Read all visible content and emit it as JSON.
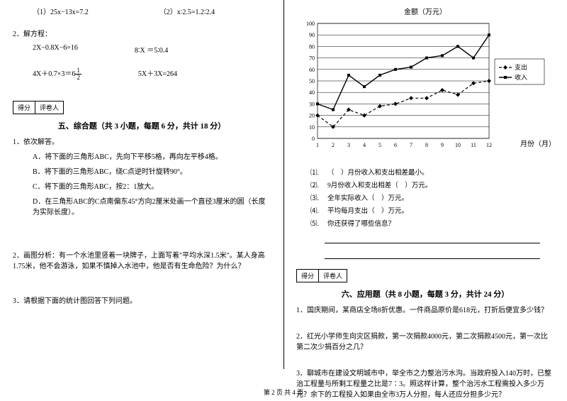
{
  "left": {
    "eq1a": "（1）25x−13x=7.2",
    "eq1b": "（2）x∶2.5=1.2∶2.4",
    "q2_label": "2．解方程：",
    "eq2a": "2X−0.8X−6=16",
    "eq2b": "8∶X ＝5∶0.4",
    "eq3a_pre": "4X＋0.7×3＝6",
    "eq3a_frac_n": "1",
    "eq3a_frac_d": "2",
    "eq3b": "5X＋3X=264",
    "score_a": "得分",
    "score_b": "评卷人",
    "section5": "五、综合题（共 3 小题，每题 6 分，共计 18 分）",
    "q1": "1．依次解答。",
    "q1a": "A．将下面的三角形ABC，先向下平移5格，再向左平移4格。",
    "q1b": "B．将下面的三角形ABC，绕C点逆时针旋转90°。",
    "q1c": "C．将下面的三角形ABC，按2：1放大。",
    "q1d": "D．在三角形ABC的C点南偏东45°方向2厘米处画一个直径3厘米的圆（长度为实际长度）。",
    "q2": "2．画图分析：有一个水池里竖着一块牌子，上面写着\"平均水深1.5米\"。某人身高1.75米，他不会游泳，如果不慎掉入水池中，他是否有生命危险？为什么？",
    "q3": "3．请根据下面的统计图回答下列问题。"
  },
  "right": {
    "chart_title": "金额（万元）",
    "xlabel": "月份（月）",
    "legend_a": "支出",
    "legend_b": "收入",
    "chart": {
      "ylim": [
        0,
        100
      ],
      "ytick_step": 10,
      "yticks": [
        "0",
        "10",
        "20",
        "30",
        "40",
        "50",
        "60",
        "70",
        "80",
        "90",
        "100"
      ],
      "xticks": [
        "1",
        "2",
        "3",
        "4",
        "5",
        "6",
        "7",
        "8",
        "9",
        "10",
        "11",
        "12"
      ],
      "income": [
        30,
        25,
        55,
        45,
        55,
        60,
        62,
        70,
        72,
        80,
        70,
        90
      ],
      "expense": [
        20,
        10,
        25,
        20,
        28,
        30,
        35,
        35,
        42,
        38,
        48,
        50
      ],
      "income_color": "#000000",
      "expense_color": "#000000",
      "grid_color": "#000000",
      "bg": "#ffffff",
      "dash": "4,3"
    },
    "q1n": "⑴.",
    "q1": "（　）月份收入和支出相差最小。",
    "q2n": "⑵.",
    "q2": "9月份收入和支出相差（　）万元。",
    "q3n": "⑶.",
    "q3": "全年实际收入（　）万元。",
    "q4n": "⑷.",
    "q4": "平均每月支出（　）万元。",
    "q5n": "⑸.",
    "q5": "你还获得了哪些信息？",
    "score_a": "得分",
    "score_b": "评卷人",
    "section6": "六、应用题（共 8 小题，每题 3 分，共计 24 分）",
    "qa1": "1．国庆期间，某商店全场8折优惠。一件商品原价是618元，打折后便宜多少钱？",
    "qa2": "2．红光小学师生向灾区捐款，第一次捐款4000元，第二次捐款4500元，第一次比第二次少捐百分之几？",
    "qa3": "3．聊城市在建设文明城市中，举全市之力整治污水沟。当政府投入140万时，已整治工程量与所剩工程量之比是7∶3。照这样计算，整个治污水工程需投入多少万元？余下的工程投入如果由全市3万人分担，每人还应分担多少元？"
  },
  "footer": "第 2 页 共 4 页"
}
